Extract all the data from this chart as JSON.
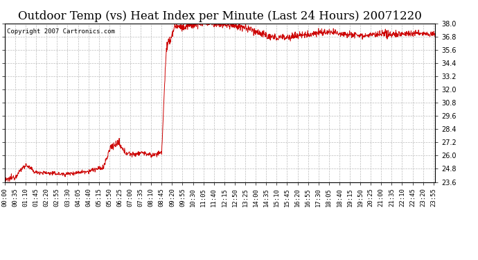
{
  "title": "Outdoor Temp (vs) Heat Index per Minute (Last 24 Hours) 20071220",
  "copyright": "Copyright 2007 Cartronics.com",
  "ymin": 23.6,
  "ymax": 38.0,
  "ytick_step": 1.2,
  "background_color": "#ffffff",
  "line_color": "#cc0000",
  "grid_color": "#bbbbbb",
  "title_fontsize": 12,
  "copyright_fontsize": 6.5,
  "tick_label_fontsize": 6.5,
  "x_tick_labels": [
    "00:00",
    "00:35",
    "01:10",
    "01:45",
    "02:20",
    "02:55",
    "03:30",
    "04:05",
    "04:40",
    "05:15",
    "05:50",
    "06:25",
    "07:00",
    "07:35",
    "08:10",
    "08:45",
    "09:20",
    "09:55",
    "10:30",
    "11:05",
    "11:40",
    "12:15",
    "12:50",
    "13:25",
    "14:00",
    "14:35",
    "15:10",
    "15:45",
    "16:20",
    "16:55",
    "17:30",
    "18:05",
    "18:40",
    "19:15",
    "19:50",
    "20:25",
    "21:00",
    "21:35",
    "22:10",
    "22:45",
    "23:20",
    "23:55"
  ],
  "segments": [
    [
      0,
      35,
      23.7,
      24.1,
      0.12
    ],
    [
      35,
      70,
      24.1,
      25.2,
      0.12
    ],
    [
      70,
      100,
      25.2,
      24.5,
      0.1
    ],
    [
      100,
      200,
      24.5,
      24.3,
      0.09
    ],
    [
      200,
      280,
      24.3,
      24.6,
      0.09
    ],
    [
      280,
      330,
      24.6,
      24.9,
      0.1
    ],
    [
      330,
      355,
      24.9,
      26.8,
      0.15
    ],
    [
      355,
      380,
      26.8,
      27.1,
      0.15
    ],
    [
      380,
      400,
      27.1,
      26.3,
      0.15
    ],
    [
      400,
      430,
      26.3,
      26.1,
      0.12
    ],
    [
      430,
      460,
      26.1,
      26.3,
      0.12
    ],
    [
      460,
      490,
      26.3,
      26.0,
      0.1
    ],
    [
      490,
      525,
      26.0,
      26.3,
      0.1
    ],
    [
      525,
      540,
      26.3,
      35.5,
      0.25
    ],
    [
      540,
      570,
      35.5,
      37.8,
      0.25
    ],
    [
      570,
      600,
      37.8,
      37.6,
      0.2
    ],
    [
      600,
      650,
      37.6,
      38.1,
      0.2
    ],
    [
      650,
      770,
      38.1,
      37.8,
      0.18
    ],
    [
      770,
      830,
      37.8,
      37.4,
      0.2
    ],
    [
      830,
      890,
      37.4,
      36.7,
      0.18
    ],
    [
      890,
      960,
      36.7,
      36.8,
      0.18
    ],
    [
      960,
      1060,
      36.8,
      37.2,
      0.16
    ],
    [
      1060,
      1130,
      37.2,
      37.1,
      0.16
    ],
    [
      1130,
      1200,
      37.1,
      36.9,
      0.15
    ],
    [
      1200,
      1280,
      36.9,
      37.0,
      0.15
    ],
    [
      1280,
      1380,
      37.0,
      37.1,
      0.14
    ],
    [
      1380,
      1440,
      37.1,
      37.0,
      0.13
    ]
  ]
}
